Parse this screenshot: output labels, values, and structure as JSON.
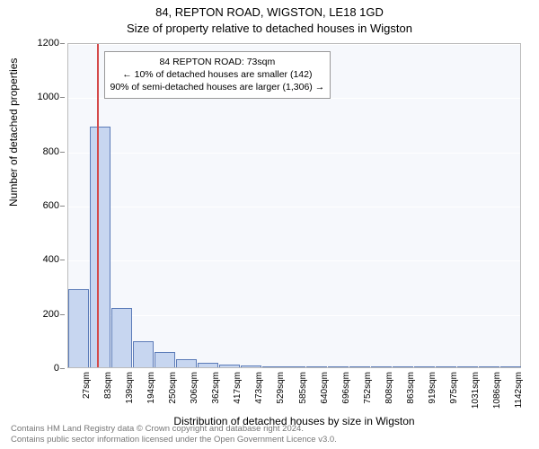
{
  "title_line1": "84, REPTON ROAD, WIGSTON, LE18 1GD",
  "title_line2": "Size of property relative to detached houses in Wigston",
  "ylabel": "Number of detached properties",
  "xlabel": "Distribution of detached houses by size in Wigston",
  "footer_line1": "Contains HM Land Registry data © Crown copyright and database right 2024.",
  "footer_line2": "Contains public sector information licensed under the Open Government Licence v3.0.",
  "chart": {
    "type": "bar",
    "background_color": "#f6f8fc",
    "grid_color": "#ffffff",
    "bar_color": "#c7d6f0",
    "bar_border_color": "#5b7bb8",
    "refline_color": "#d44a4a",
    "ymin": 0,
    "ymax": 1200,
    "yticks": [
      0,
      200,
      400,
      600,
      800,
      1000,
      1200
    ],
    "xtick_labels": [
      "27sqm",
      "83sqm",
      "139sqm",
      "194sqm",
      "250sqm",
      "306sqm",
      "362sqm",
      "417sqm",
      "473sqm",
      "529sqm",
      "585sqm",
      "640sqm",
      "696sqm",
      "752sqm",
      "808sqm",
      "863sqm",
      "919sqm",
      "975sqm",
      "1031sqm",
      "1086sqm",
      "1142sqm"
    ],
    "n_bins": 21,
    "values": [
      290,
      890,
      220,
      95,
      55,
      30,
      15,
      10,
      8,
      5,
      3,
      2,
      2,
      1,
      1,
      1,
      0,
      0,
      0,
      0,
      0
    ],
    "refline_x_sqm": 73,
    "x_min_sqm": 0,
    "x_max_sqm": 1170
  },
  "annotation": {
    "line1": "84 REPTON ROAD: 73sqm",
    "line2": "← 10% of detached houses are smaller (142)",
    "line3": "90% of semi-detached houses are larger (1,306) →"
  }
}
